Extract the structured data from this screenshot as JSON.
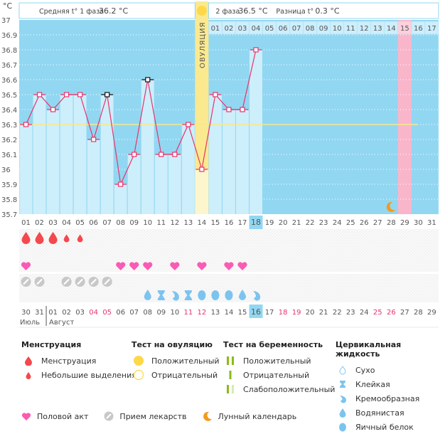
{
  "chart_data": {
    "type": "line",
    "title": "",
    "yunit": "°C",
    "ylim": [
      35.7,
      37.0
    ],
    "yticks": [
      "37",
      "36.9",
      "36.8",
      "36.7",
      "36.6",
      "36.5",
      "36.4",
      "36.3",
      "36.2",
      "36.1",
      "36",
      "35.9",
      "35.8",
      "35.7"
    ],
    "cycle_days": [
      "01",
      "02",
      "03",
      "04",
      "05",
      "06",
      "07",
      "08",
      "09",
      "10",
      "11",
      "12",
      "13",
      "14",
      "15",
      "16",
      "17",
      "18",
      "19",
      "20",
      "21",
      "22",
      "23",
      "24",
      "25",
      "26",
      "27",
      "28",
      "29",
      "30",
      "31"
    ],
    "series": [
      {
        "name": "BBT",
        "values": [
          36.3,
          36.5,
          36.4,
          36.5,
          36.5,
          36.2,
          36.5,
          35.9,
          36.1,
          36.6,
          36.1,
          36.1,
          36.3,
          36.0,
          36.5,
          36.4,
          36.4,
          36.8
        ]
      }
    ],
    "marked_points": [
      7,
      10
    ],
    "coverline": 36.3,
    "current_day": "18",
    "ovulation_day": "14",
    "ovulation_label": "ОВУЛЯЦИЯ",
    "expected_period_day": "29",
    "moon_day": "28",
    "phase2_days": [
      "01",
      "02",
      "03",
      "04",
      "05",
      "06",
      "07",
      "08",
      "09",
      "10",
      "11",
      "12",
      "13",
      "14",
      "15",
      "16",
      "17"
    ],
    "phase2_highlight": "15",
    "phase1_avg_label": "Средняя t° 1 фаза",
    "phase1_avg_value": "36.2 °C",
    "phase2_label": "2 фаза",
    "phase2_value": "36.5 °C",
    "diff_label": "Разница t°",
    "diff_value": "0.3 °C"
  },
  "markers": {
    "menstruation": {
      "01": "heavy",
      "02": "heavy",
      "03": "heavy",
      "04": "light",
      "05": "light"
    },
    "intercourse": [
      "01",
      "08",
      "09",
      "10",
      "12",
      "14",
      "16",
      "17"
    ],
    "medication": [
      "01",
      "02",
      "04",
      "05",
      "06",
      "07"
    ],
    "cervical_fluid": {
      "10": "watery",
      "11": "sticky",
      "12": "creamy",
      "13": "sticky",
      "14": "egg",
      "15": "egg",
      "16": "egg",
      "17": "watery",
      "18": "creamy"
    }
  },
  "calendar": {
    "dates": [
      "30",
      "31",
      "01",
      "02",
      "03",
      "04",
      "05",
      "06",
      "07",
      "08",
      "09",
      "10",
      "11",
      "12",
      "13",
      "14",
      "15",
      "16",
      "17",
      "18",
      "19",
      "20",
      "21",
      "22",
      "23",
      "24",
      "25",
      "26",
      "27",
      "28",
      "29"
    ],
    "weekend_indices": [
      5,
      6,
      12,
      13,
      19,
      20,
      26,
      27
    ],
    "today_index": 17,
    "month_prev": "Июль",
    "month_curr": "Август"
  },
  "legend": {
    "menstruation": {
      "title": "Менструация",
      "items": [
        "Менструация",
        "Небольшие выделения"
      ]
    },
    "ovulation_test": {
      "title": "Тест на овуляцию",
      "items": [
        "Положительный",
        "Отрицательный"
      ]
    },
    "pregnancy_test": {
      "title": "Тест на беременность",
      "items": [
        "Положительный",
        "Отрицательный",
        "Слабоположительный"
      ]
    },
    "cervical": {
      "title": "Цервикальная жидкость",
      "items": [
        "Сухо",
        "Клейкая",
        "Кремообразная",
        "Водянистая",
        "Яичный белок"
      ]
    },
    "bottom": [
      "Половой акт",
      "Прием лекарств",
      "Лунный календарь"
    ]
  },
  "colors": {
    "chart_bg": "#92d7f2",
    "bar_fill": "#cdeefb",
    "line": "#e8336b",
    "coverline": "#f6e98a",
    "ovulation": "#fbe98f",
    "period": "#f9b6cb",
    "today": "#92d7f2",
    "blood": "#f5484d",
    "heart": "#fa5bb4",
    "pill": "#c8c8c8",
    "fluid": "#7cc4ef",
    "moon": "#f39a1e",
    "weekend": "#e8336b",
    "preg_green": "#8cba1a",
    "preg_light": "#d9e8b3",
    "sun": "#fdd84a"
  }
}
